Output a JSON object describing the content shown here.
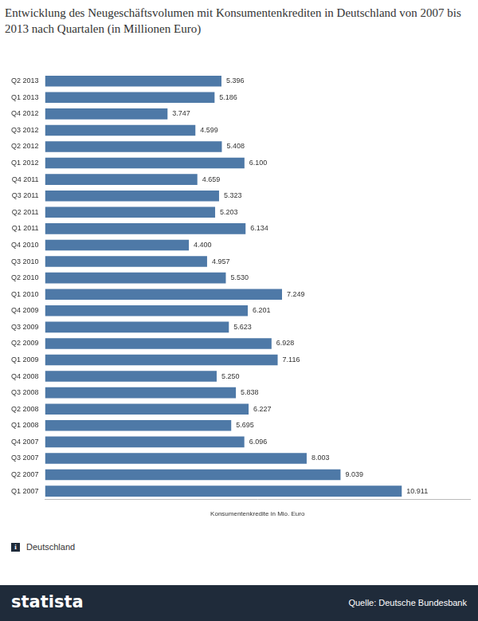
{
  "chart_data": {
    "type": "bar",
    "orientation": "horizontal",
    "title": "Entwicklung des Neugeschäftsvolumen mit Konsumentenkrediten in Deutschland von 2007 bis 2013 nach Quartalen (in Millionen Euro)",
    "x_label": "Konsumentenkredite in Mio. Euro",
    "note": "Deutschland",
    "source": "Quelle: Deutsche Bundesbank",
    "brand": "statista",
    "categories": [
      "Q2 2013",
      "Q1 2013",
      "Q4 2012",
      "Q3 2012",
      "Q2 2012",
      "Q1 2012",
      "Q4 2011",
      "Q3 2011",
      "Q2 2011",
      "Q1 2011",
      "Q4 2010",
      "Q3 2010",
      "Q2 2010",
      "Q1 2010",
      "Q4 2009",
      "Q3 2009",
      "Q2 2009",
      "Q1 2009",
      "Q4 2008",
      "Q3 2008",
      "Q2 2008",
      "Q1 2008",
      "Q4 2007",
      "Q3 2007",
      "Q2 2007",
      "Q1 2007"
    ],
    "values": [
      5396,
      5186,
      3747,
      4599,
      5408,
      6100,
      4659,
      5323,
      5203,
      6134,
      4400,
      4957,
      5530,
      7249,
      6201,
      5623,
      6928,
      7116,
      5250,
      5838,
      6227,
      5695,
      6096,
      8003,
      9039,
      10911
    ],
    "value_labels": [
      "5.396",
      "5.186",
      "3.747",
      "4.599",
      "5.408",
      "6.100",
      "4.659",
      "5.323",
      "5.203",
      "6.134",
      "4.400",
      "4.957",
      "5.530",
      "7.249",
      "6.201",
      "5.623",
      "6.928",
      "7.116",
      "5.250",
      "5.838",
      "6.227",
      "5.695",
      "6.096",
      "8.003",
      "9.039",
      "10.911"
    ],
    "color": "#4e79a7",
    "xlim": [
      0,
      13000
    ],
    "grid": false,
    "data_labels": true,
    "tick_labels": "y"
  }
}
